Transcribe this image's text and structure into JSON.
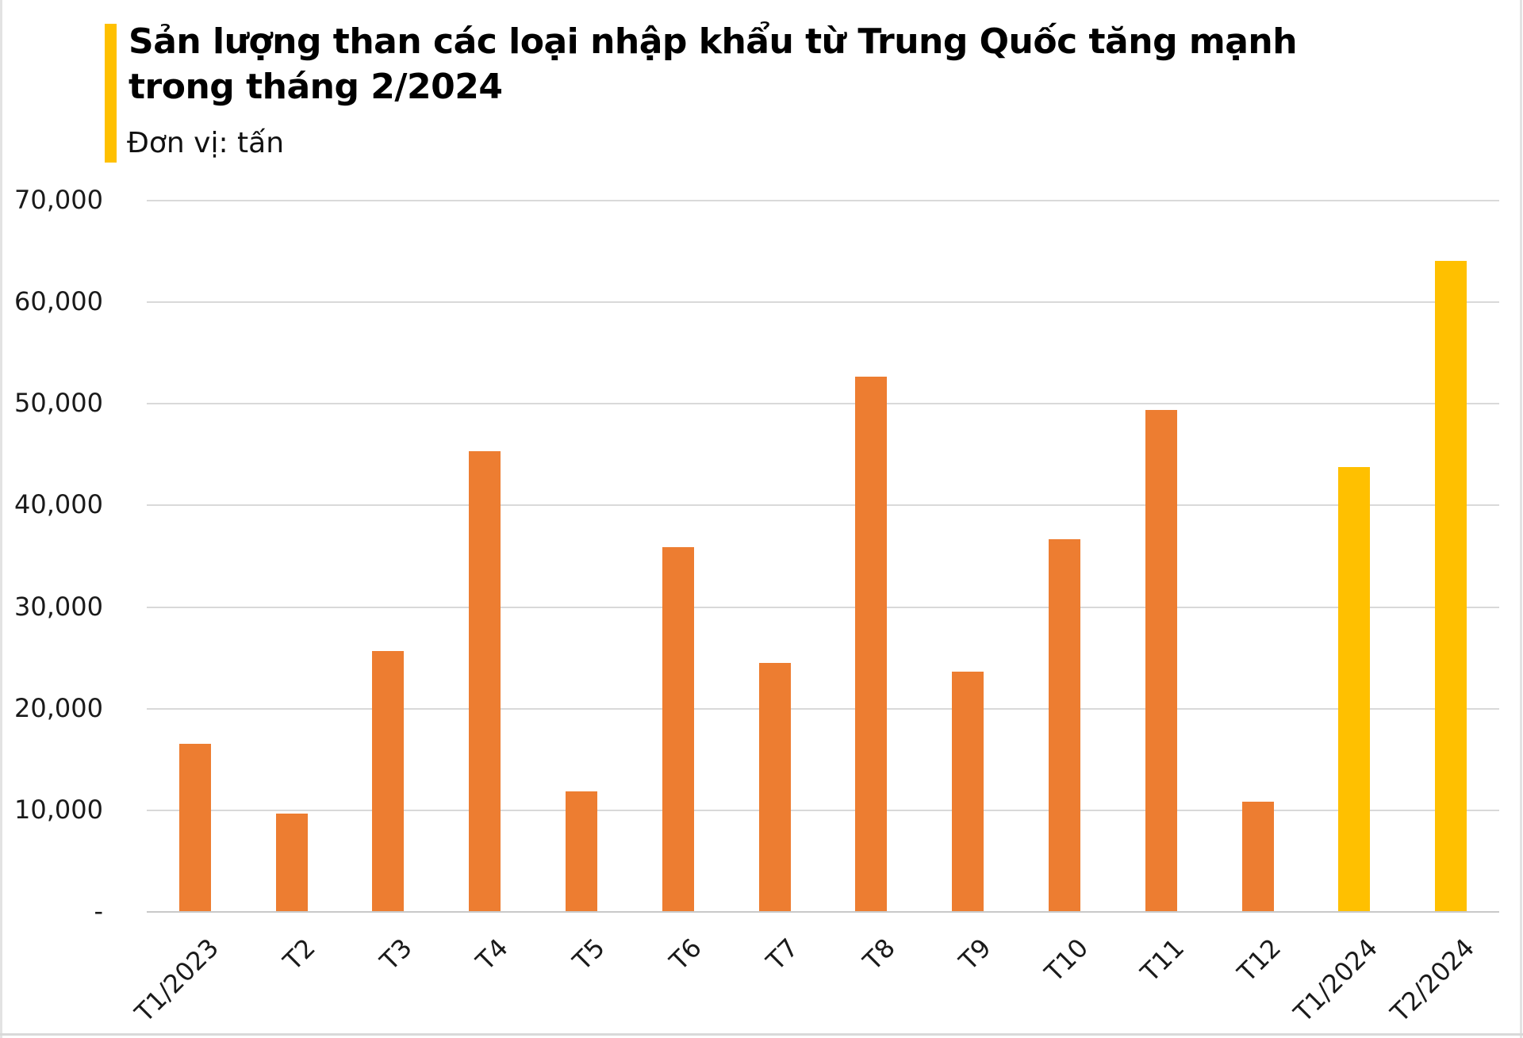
{
  "header": {
    "title_lines": [
      "Sản lượng than các loại nhập khẩu từ Trung Quốc tăng mạnh",
      "trong tháng 2/2024"
    ],
    "unit_label": "Đơn vị: tấn",
    "accent_color": "#FFC000"
  },
  "chart_data": {
    "type": "bar",
    "title": "Sản lượng than các loại nhập khẩu từ Trung Quốc tăng mạnh trong tháng 2/2024",
    "subtitle": "Đơn vị: tấn",
    "categories": [
      "T1/2023",
      "T2",
      "T3",
      "T4",
      "T5",
      "T6",
      "T7",
      "T8",
      "T9",
      "T10",
      "T11",
      "T12",
      "T1/2024",
      "T2/2024"
    ],
    "values": [
      16500,
      9600,
      25600,
      45300,
      11800,
      35800,
      24400,
      52600,
      23600,
      36600,
      49300,
      10800,
      43700,
      64000
    ],
    "unit": "tấn",
    "colors": {
      "bar_default": "#ED7D31",
      "bar_highlight": "#FFC000",
      "gridline": "#D9D9D9",
      "axis_line": "#C9C9C9",
      "tick_text": "#1A1A1A"
    },
    "highlight_indices": [
      12,
      13
    ],
    "ylim": [
      0,
      70000
    ],
    "ytick_interval": 10000,
    "ytick_labels": [
      "-",
      "10,000",
      "20,000",
      "30,000",
      "40,000",
      "50,000",
      "60,000",
      "70,000"
    ],
    "grid": "horizontal",
    "legend": "none",
    "x_tick_rotation": -45,
    "xlabel": "",
    "ylabel": ""
  }
}
